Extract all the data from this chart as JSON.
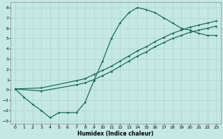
{
  "xlabel": "Humidex (Indice chaleur)",
  "xlim_min": -0.5,
  "xlim_max": 23.5,
  "ylim_min": -3.3,
  "ylim_max": 8.5,
  "yticks": [
    -3,
    -2,
    -1,
    0,
    1,
    2,
    3,
    4,
    5,
    6,
    7,
    8
  ],
  "xticks": [
    0,
    1,
    2,
    3,
    4,
    5,
    6,
    7,
    8,
    9,
    10,
    11,
    12,
    13,
    14,
    15,
    16,
    17,
    18,
    19,
    20,
    21,
    22,
    23
  ],
  "bg_color": "#c5e8e4",
  "grid_color": "#aad4d0",
  "line_color": "#1a6b5a",
  "markersize": 1.8,
  "linewidth": 0.9,
  "line1_x": [
    0,
    1,
    2,
    3,
    4,
    5,
    6,
    7,
    8,
    9,
    10,
    11,
    12,
    13,
    14,
    15,
    16,
    17,
    18,
    19,
    20,
    21,
    22,
    23
  ],
  "line1_y": [
    0.1,
    -0.7,
    -1.4,
    -2.0,
    -2.7,
    -2.2,
    -2.2,
    -2.2,
    -1.2,
    0.9,
    2.8,
    5.0,
    6.5,
    7.5,
    8.0,
    7.8,
    7.5,
    7.0,
    6.5,
    6.0,
    5.8,
    5.5,
    5.3,
    5.3
  ],
  "line2_x": [
    0,
    3,
    7,
    8,
    9,
    10,
    11,
    12,
    13,
    14,
    15,
    16,
    17,
    18,
    19,
    20,
    21,
    22,
    23
  ],
  "line2_y": [
    0.1,
    0.2,
    0.9,
    1.1,
    1.5,
    1.9,
    2.3,
    2.8,
    3.3,
    3.8,
    4.2,
    4.7,
    5.1,
    5.5,
    5.8,
    6.1,
    6.3,
    6.5,
    6.7
  ],
  "line3_x": [
    0,
    3,
    7,
    8,
    9,
    10,
    11,
    12,
    13,
    14,
    15,
    16,
    17,
    18,
    19,
    20,
    21,
    22,
    23
  ],
  "line3_y": [
    0.1,
    -0.1,
    0.5,
    0.7,
    1.0,
    1.4,
    1.8,
    2.3,
    2.8,
    3.3,
    3.7,
    4.2,
    4.6,
    5.0,
    5.3,
    5.6,
    5.8,
    6.0,
    6.2
  ]
}
